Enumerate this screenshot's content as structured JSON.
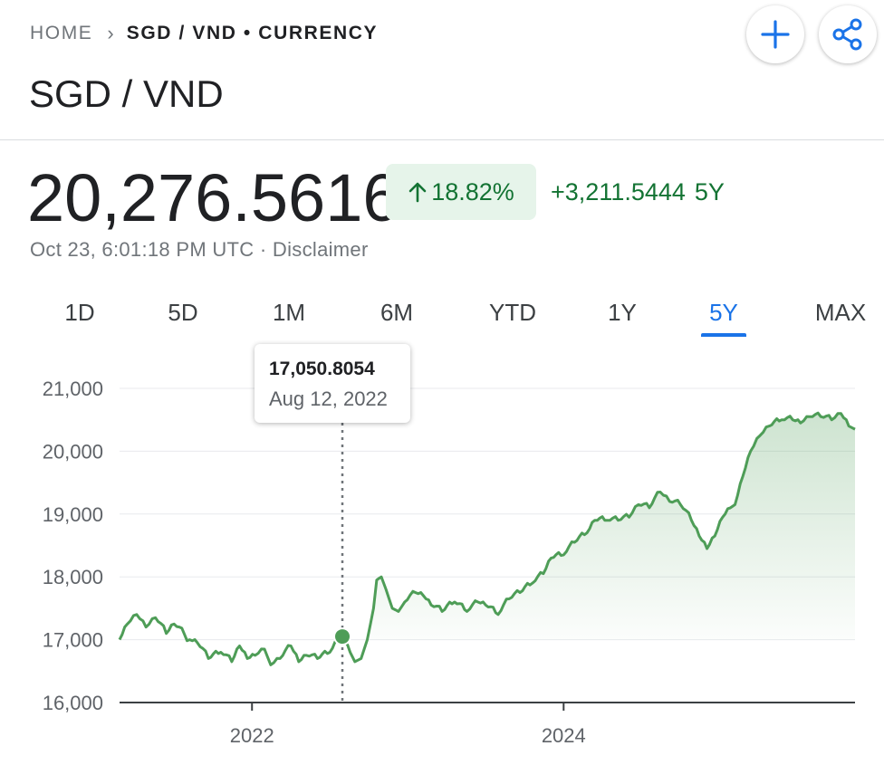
{
  "breadcrumb": {
    "home": "HOME",
    "current": "SGD / VND • CURRENCY"
  },
  "title": "SGD / VND",
  "quote": {
    "price": "20,276.5616",
    "percent_change": "18.82%",
    "abs_change": "+3,211.5444",
    "period": "5Y",
    "timestamp": "Oct 23, 6:01:18 PM UTC · Disclaimer"
  },
  "tabs": [
    {
      "label": "1D",
      "active": false
    },
    {
      "label": "5D",
      "active": false
    },
    {
      "label": "1M",
      "active": false
    },
    {
      "label": "6M",
      "active": false
    },
    {
      "label": "YTD",
      "active": false
    },
    {
      "label": "1Y",
      "active": false
    },
    {
      "label": "5Y",
      "active": true
    },
    {
      "label": "MAX",
      "active": false
    }
  ],
  "tooltip": {
    "value": "17,050.8054",
    "date": "Aug 12, 2022"
  },
  "colors": {
    "positive": "#137333",
    "line": "#4e9d57",
    "accent": "#1a73e8",
    "badge_bg": "#e6f4ea"
  },
  "icons": {
    "add": "plus-icon",
    "share": "share-icon",
    "up": "arrow-up-icon"
  },
  "chart_data": {
    "type": "area",
    "ylim": [
      16000,
      21000
    ],
    "y_ticks": [
      "16,000",
      "17,000",
      "18,000",
      "19,000",
      "20,000",
      "21,000"
    ],
    "x_ticks": [
      "2022",
      "2024"
    ],
    "x_tick_years": [
      2022,
      2024
    ],
    "xlim": [
      2021.15,
      2025.87
    ],
    "grid": true,
    "marker": {
      "x": 2022.58,
      "y": 17050.8
    },
    "series": [
      {
        "x": [
          2021.15,
          2021.2,
          2021.26,
          2021.32,
          2021.38,
          2021.45,
          2021.5,
          2021.6,
          2021.65,
          2021.72,
          2021.8,
          2021.87,
          2021.92,
          2021.97,
          2022.02,
          2022.08,
          2022.12,
          2022.18,
          2022.25,
          2022.3,
          2022.35,
          2022.42,
          2022.5,
          2022.55,
          2022.58,
          2022.63,
          2022.66,
          2022.7,
          2022.74,
          2022.78,
          2022.8,
          2022.83,
          2022.86,
          2022.9,
          2022.94,
          2022.98,
          2023.05,
          2023.1,
          2023.15,
          2023.22,
          2023.3,
          2023.38,
          2023.45,
          2023.5,
          2023.58,
          2023.65,
          2023.72,
          2023.8,
          2023.87,
          2023.92,
          2024.0,
          2024.07,
          2024.15,
          2024.2,
          2024.28,
          2024.35,
          2024.42,
          2024.48,
          2024.55,
          2024.62,
          2024.68,
          2024.75,
          2024.82,
          2024.87,
          2024.92,
          2024.97,
          2025.02,
          2025.07,
          2025.1,
          2025.15,
          2025.2,
          2025.26,
          2025.32,
          2025.4,
          2025.47,
          2025.52,
          2025.58,
          2025.65,
          2025.72,
          2025.78,
          2025.83,
          2025.87
        ],
        "y": [
          17000,
          17250,
          17400,
          17200,
          17350,
          17100,
          17250,
          17000,
          16950,
          16700,
          16800,
          16650,
          16900,
          16700,
          16750,
          16850,
          16600,
          16700,
          16900,
          16650,
          16750,
          16700,
          16800,
          17000,
          17050,
          16800,
          16650,
          16700,
          17000,
          17500,
          17950,
          18000,
          17800,
          17500,
          17450,
          17600,
          17750,
          17700,
          17550,
          17450,
          17600,
          17450,
          17600,
          17550,
          17400,
          17650,
          17750,
          17900,
          18050,
          18300,
          18350,
          18550,
          18700,
          18900,
          18900,
          18900,
          18950,
          19150,
          19100,
          19350,
          19200,
          19150,
          18900,
          18650,
          18450,
          18650,
          18950,
          19100,
          19150,
          19600,
          20000,
          20250,
          20400,
          20500,
          20500,
          20450,
          20550,
          20550,
          20500,
          20600,
          20400,
          20350
        ]
      }
    ]
  }
}
